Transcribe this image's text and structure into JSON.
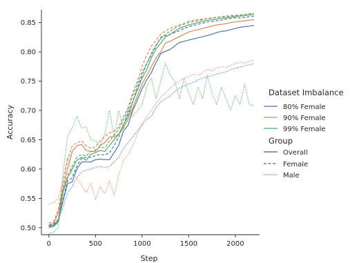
{
  "chart_data": {
    "type": "line",
    "xlabel": "Step",
    "ylabel": "Accuracy",
    "xlim": [
      -80,
      2260
    ],
    "ylim": [
      0.488,
      0.872
    ],
    "xticks": [
      0,
      500,
      1000,
      1500,
      2000
    ],
    "yticks": [
      0.5,
      0.55,
      0.6,
      0.65,
      0.7,
      0.75,
      0.8,
      0.85
    ],
    "xtick_labels": [
      "0",
      "500",
      "1000",
      "1500",
      "2000"
    ],
    "ytick_labels": [
      "0.50",
      "0.55",
      "0.60",
      "0.65",
      "0.70",
      "0.75",
      "0.80",
      "0.85"
    ],
    "grid": false,
    "legend": {
      "placement": "right",
      "hue_title": "Dataset Imbalance",
      "hue_entries": [
        {
          "label": "80% Female",
          "color": "#4c72b0"
        },
        {
          "label": "90% Female",
          "color": "#dd8452"
        },
        {
          "label": "99% Female",
          "color": "#55a868"
        }
      ],
      "style_title": "Group",
      "style_entries": [
        {
          "label": "Overall",
          "dash": "solid"
        },
        {
          "label": "Female",
          "dash": "dashed"
        },
        {
          "label": "Male",
          "dash": "dotted"
        }
      ]
    },
    "x": [
      0,
      50,
      100,
      150,
      200,
      250,
      300,
      350,
      400,
      450,
      500,
      550,
      600,
      650,
      700,
      750,
      800,
      850,
      900,
      950,
      1000,
      1050,
      1100,
      1150,
      1200,
      1250,
      1300,
      1350,
      1400,
      1450,
      1500,
      1550,
      1600,
      1650,
      1700,
      1750,
      1800,
      1850,
      1900,
      1950,
      2000,
      2050,
      2100,
      2150,
      2200
    ],
    "series": [
      {
        "group": "80% Female",
        "style": "Overall",
        "color": "#4c72b0",
        "values": [
          0.503,
          0.504,
          0.512,
          0.545,
          0.575,
          0.578,
          0.6,
          0.612,
          0.612,
          0.612,
          0.616,
          0.617,
          0.616,
          0.616,
          0.628,
          0.641,
          0.665,
          0.675,
          0.7,
          0.718,
          0.737,
          0.752,
          0.765,
          0.782,
          0.797,
          0.801,
          0.804,
          0.81,
          0.816,
          0.818,
          0.82,
          0.822,
          0.824,
          0.826,
          0.828,
          0.83,
          0.833,
          0.835,
          0.836,
          0.838,
          0.84,
          0.842,
          0.843,
          0.844,
          0.845
        ]
      },
      {
        "group": "80% Female",
        "style": "Female",
        "color": "#4c72b0",
        "values": [
          0.504,
          0.506,
          0.514,
          0.548,
          0.58,
          0.585,
          0.605,
          0.618,
          0.62,
          0.62,
          0.623,
          0.625,
          0.624,
          0.628,
          0.64,
          0.655,
          0.675,
          0.695,
          0.715,
          0.74,
          0.76,
          0.78,
          0.795,
          0.81,
          0.825,
          0.828,
          0.83,
          0.833,
          0.836,
          0.84,
          0.843,
          0.845,
          0.847,
          0.849,
          0.851,
          0.852,
          0.853,
          0.854,
          0.856,
          0.857,
          0.858,
          0.858,
          0.859,
          0.86,
          0.861
        ]
      },
      {
        "group": "80% Female",
        "style": "Male",
        "color": "#4c72b0",
        "values": [
          0.501,
          0.502,
          0.508,
          0.535,
          0.56,
          0.57,
          0.585,
          0.595,
          0.598,
          0.6,
          0.603,
          0.604,
          0.603,
          0.604,
          0.612,
          0.62,
          0.635,
          0.645,
          0.655,
          0.665,
          0.675,
          0.685,
          0.69,
          0.705,
          0.715,
          0.72,
          0.725,
          0.732,
          0.738,
          0.742,
          0.745,
          0.748,
          0.752,
          0.755,
          0.757,
          0.76,
          0.762,
          0.764,
          0.766,
          0.77,
          0.772,
          0.774,
          0.776,
          0.778,
          0.78
        ]
      },
      {
        "group": "90% Female",
        "style": "Overall",
        "color": "#dd8452",
        "values": [
          0.505,
          0.507,
          0.525,
          0.565,
          0.6,
          0.63,
          0.64,
          0.642,
          0.632,
          0.63,
          0.63,
          0.64,
          0.645,
          0.655,
          0.655,
          0.66,
          0.67,
          0.685,
          0.705,
          0.725,
          0.745,
          0.76,
          0.775,
          0.79,
          0.8,
          0.815,
          0.818,
          0.822,
          0.826,
          0.83,
          0.834,
          0.836,
          0.838,
          0.84,
          0.842,
          0.844,
          0.846,
          0.847,
          0.848,
          0.85,
          0.851,
          0.852,
          0.853,
          0.854,
          0.855
        ]
      },
      {
        "group": "90% Female",
        "style": "Female",
        "color": "#dd8452",
        "values": [
          0.508,
          0.51,
          0.53,
          0.575,
          0.615,
          0.64,
          0.645,
          0.648,
          0.64,
          0.635,
          0.638,
          0.648,
          0.655,
          0.662,
          0.665,
          0.672,
          0.69,
          0.705,
          0.73,
          0.75,
          0.775,
          0.795,
          0.81,
          0.82,
          0.83,
          0.836,
          0.84,
          0.843,
          0.846,
          0.849,
          0.852,
          0.854,
          0.855,
          0.856,
          0.857,
          0.858,
          0.859,
          0.859,
          0.86,
          0.86,
          0.861,
          0.862,
          0.862,
          0.863,
          0.864
        ]
      },
      {
        "group": "90% Female",
        "style": "Male",
        "color": "#dd8452",
        "values": [
          0.54,
          0.543,
          0.55,
          0.58,
          0.62,
          0.59,
          0.585,
          0.572,
          0.56,
          0.575,
          0.548,
          0.57,
          0.558,
          0.58,
          0.555,
          0.59,
          0.615,
          0.625,
          0.64,
          0.66,
          0.678,
          0.69,
          0.7,
          0.712,
          0.722,
          0.73,
          0.738,
          0.745,
          0.75,
          0.755,
          0.758,
          0.762,
          0.76,
          0.765,
          0.77,
          0.768,
          0.772,
          0.775,
          0.773,
          0.777,
          0.78,
          0.782,
          0.781,
          0.784,
          0.786
        ]
      },
      {
        "group": "99% Female",
        "style": "Overall",
        "color": "#55a868",
        "values": [
          0.5,
          0.502,
          0.51,
          0.56,
          0.585,
          0.6,
          0.615,
          0.62,
          0.615,
          0.625,
          0.628,
          0.632,
          0.63,
          0.64,
          0.65,
          0.66,
          0.675,
          0.69,
          0.715,
          0.735,
          0.755,
          0.77,
          0.79,
          0.805,
          0.815,
          0.825,
          0.83,
          0.835,
          0.84,
          0.843,
          0.846,
          0.848,
          0.85,
          0.852,
          0.854,
          0.855,
          0.856,
          0.857,
          0.858,
          0.859,
          0.86,
          0.861,
          0.862,
          0.863,
          0.864
        ]
      },
      {
        "group": "99% Female",
        "style": "Female",
        "color": "#55a868",
        "values": [
          0.501,
          0.503,
          0.512,
          0.562,
          0.588,
          0.605,
          0.62,
          0.625,
          0.622,
          0.63,
          0.633,
          0.638,
          0.636,
          0.648,
          0.658,
          0.668,
          0.684,
          0.7,
          0.725,
          0.745,
          0.765,
          0.78,
          0.798,
          0.812,
          0.822,
          0.83,
          0.835,
          0.84,
          0.844,
          0.847,
          0.85,
          0.852,
          0.853,
          0.855,
          0.857,
          0.858,
          0.859,
          0.86,
          0.861,
          0.862,
          0.862,
          0.863,
          0.864,
          0.865,
          0.866
        ]
      },
      {
        "group": "99% Female",
        "style": "Male",
        "color": "#55a868",
        "values": [
          0.49,
          0.492,
          0.5,
          0.59,
          0.655,
          0.67,
          0.69,
          0.67,
          0.672,
          0.65,
          0.648,
          0.64,
          0.66,
          0.7,
          0.655,
          0.7,
          0.67,
          0.705,
          0.69,
          0.7,
          0.71,
          0.74,
          0.755,
          0.72,
          0.75,
          0.78,
          0.76,
          0.75,
          0.72,
          0.755,
          0.73,
          0.71,
          0.74,
          0.72,
          0.76,
          0.73,
          0.71,
          0.74,
          0.72,
          0.7,
          0.725,
          0.71,
          0.745,
          0.71,
          0.708
        ]
      }
    ]
  }
}
